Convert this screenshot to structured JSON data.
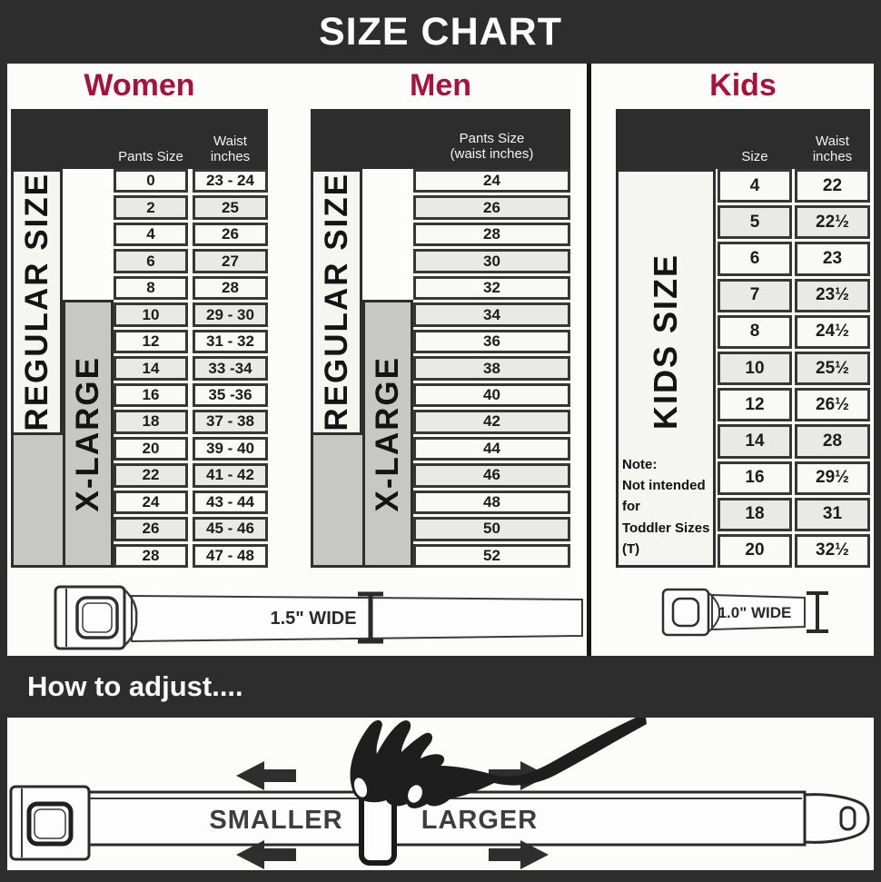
{
  "banner": {
    "title": "SIZE CHART"
  },
  "women": {
    "title": "Women",
    "header": {
      "col1": "Pants Size",
      "col2_line1": "Waist",
      "col2_line2": "inches"
    },
    "labels": {
      "regular": "REGULAR SIZE",
      "xlarge": "X-LARGE"
    },
    "rows": [
      [
        "0",
        "23 - 24"
      ],
      [
        "2",
        "25"
      ],
      [
        "4",
        "26"
      ],
      [
        "6",
        "27"
      ],
      [
        "8",
        "28"
      ],
      [
        "10",
        "29 - 30"
      ],
      [
        "12",
        "31 - 32"
      ],
      [
        "14",
        "33 -34"
      ],
      [
        "16",
        "35 -36"
      ],
      [
        "18",
        "37 - 38"
      ],
      [
        "20",
        "39 - 40"
      ],
      [
        "22",
        "41 - 42"
      ],
      [
        "24",
        "43 - 44"
      ],
      [
        "26",
        "45 - 46"
      ],
      [
        "28",
        "47 - 48"
      ]
    ]
  },
  "men": {
    "title": "Men",
    "header": {
      "line1": "Pants Size",
      "line2": "(waist inches)"
    },
    "labels": {
      "regular": "REGULAR SIZE",
      "xlarge": "X-LARGE"
    },
    "rows": [
      "24",
      "26",
      "28",
      "30",
      "32",
      "34",
      "36",
      "38",
      "40",
      "42",
      "44",
      "46",
      "48",
      "50",
      "52"
    ]
  },
  "kids": {
    "title": "Kids",
    "header": {
      "col1": "Size",
      "col2_line1": "Waist",
      "col2_line2": "inches"
    },
    "labels": {
      "size": "KIDS SIZE"
    },
    "note": {
      "line1": "Note:",
      "line2": "Not intended for",
      "line3": "Toddler Sizes (T)"
    },
    "rows": [
      [
        "4",
        "22"
      ],
      [
        "5",
        "22½"
      ],
      [
        "6",
        "23"
      ],
      [
        "7",
        "23½"
      ],
      [
        "8",
        "24½"
      ],
      [
        "10",
        "25½"
      ],
      [
        "12",
        "26½"
      ],
      [
        "14",
        "28"
      ],
      [
        "16",
        "29½"
      ],
      [
        "18",
        "31"
      ],
      [
        "20",
        "32½"
      ]
    ]
  },
  "belts": {
    "adult_label": "1.5\" WIDE",
    "kids_label": "1.0\" WIDE"
  },
  "adjust": {
    "heading": "How to adjust....",
    "smaller": "SMALLER",
    "larger": "LARGER"
  },
  "colors": {
    "accent": "#a8113d",
    "dark": "#2d2d2d",
    "gray_box": "#c7c7c6",
    "row_light": "#f9f9f8",
    "row_alt": "#e9e9e7",
    "cell_border": "#373737"
  }
}
